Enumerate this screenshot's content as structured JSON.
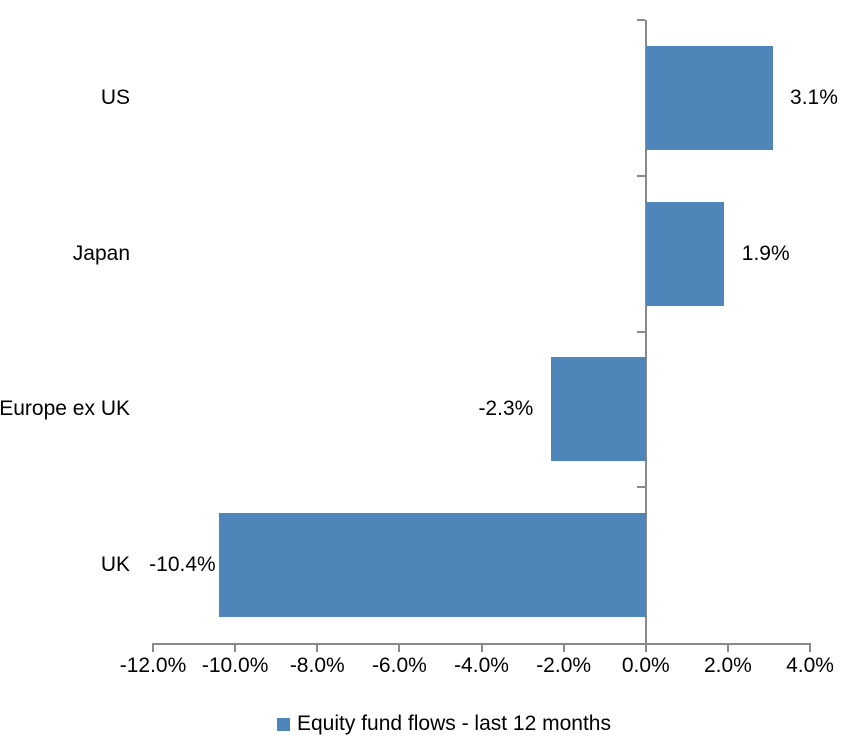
{
  "chart_data": {
    "type": "bar",
    "orientation": "horizontal",
    "title": "",
    "categories": [
      "US",
      "Japan",
      "Europe ex UK",
      "UK"
    ],
    "series": [
      {
        "name": "Equity fund flows - last 12 months",
        "values": [
          3.1,
          1.9,
          -2.3,
          -10.4
        ]
      }
    ],
    "data_labels": [
      "3.1%",
      "1.9%",
      "-2.3%",
      "-10.4%"
    ],
    "xlabel": "",
    "ylabel": "",
    "xlim": [
      -12,
      4
    ],
    "x_tick_values": [
      -12,
      -10,
      -8,
      -6,
      -4,
      -2,
      0,
      2,
      4
    ],
    "x_tick_labels": [
      "-12.0%",
      "-10.0%",
      "-8.0%",
      "-6.0%",
      "-4.0%",
      "-2.0%",
      "0.0%",
      "2.0%",
      "4.0%"
    ],
    "grid": false,
    "legend_position": "bottom",
    "bar_color": "#4e86ba",
    "axis_color": "#8a8a8a",
    "text_color": "#000000"
  },
  "legend": {
    "label": "Equity fund flows - last 12 months",
    "marker_color": "#4e86ba"
  }
}
